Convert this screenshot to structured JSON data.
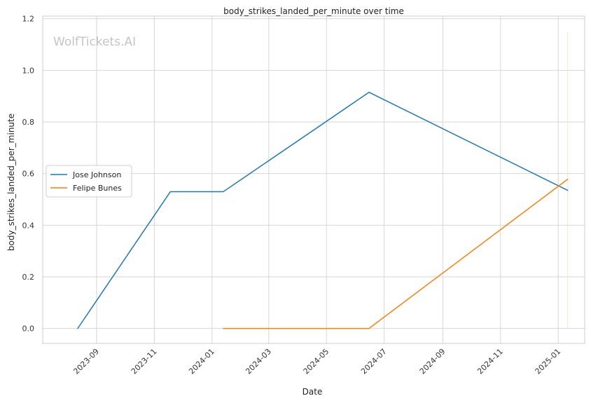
{
  "watermark": "WolfTickets.AI",
  "chart_data": {
    "type": "line",
    "title": "body_strikes_landed_per_minute over time",
    "xlabel": "Date",
    "ylabel": "body_strikes_landed_per_minute",
    "x_type": "date",
    "xlim": [
      "2023-07-06",
      "2025-01-29"
    ],
    "ylim": [
      -0.058,
      1.21
    ],
    "x_ticks": [
      "2023-09-01",
      "2023-11-01",
      "2024-01-01",
      "2024-03-01",
      "2024-05-01",
      "2024-07-01",
      "2024-09-01",
      "2024-11-01",
      "2025-01-01"
    ],
    "x_tick_labels": [
      "2023-09",
      "2023-11",
      "2024-01",
      "2024-03",
      "2024-05",
      "2024-07",
      "2024-09",
      "2024-11",
      "2025-01"
    ],
    "y_ticks": [
      0.0,
      0.2,
      0.4,
      0.6,
      0.8,
      1.0,
      1.2
    ],
    "y_tick_labels": [
      "0.0",
      "0.2",
      "0.4",
      "0.6",
      "0.8",
      "1.0",
      "1.2"
    ],
    "grid": true,
    "legend_position": "center-left",
    "series": [
      {
        "name": "Jose Johnson",
        "color": "#1f77b4",
        "x": [
          "2023-08-12",
          "2023-11-18",
          "2024-01-13",
          "2024-06-15",
          "2025-01-11"
        ],
        "y": [
          0.0,
          0.53,
          0.53,
          0.915,
          0.535
        ]
      },
      {
        "name": "Felipe Bunes",
        "color": "#ff7f0e",
        "x": [
          "2024-01-13",
          "2024-06-15",
          "2025-01-11"
        ],
        "y": [
          0.0,
          0.0,
          0.578
        ]
      }
    ],
    "reference_line": {
      "x": "2025-01-11",
      "y_range": [
        0.0,
        1.15
      ],
      "color": "#f5e6cc"
    }
  }
}
